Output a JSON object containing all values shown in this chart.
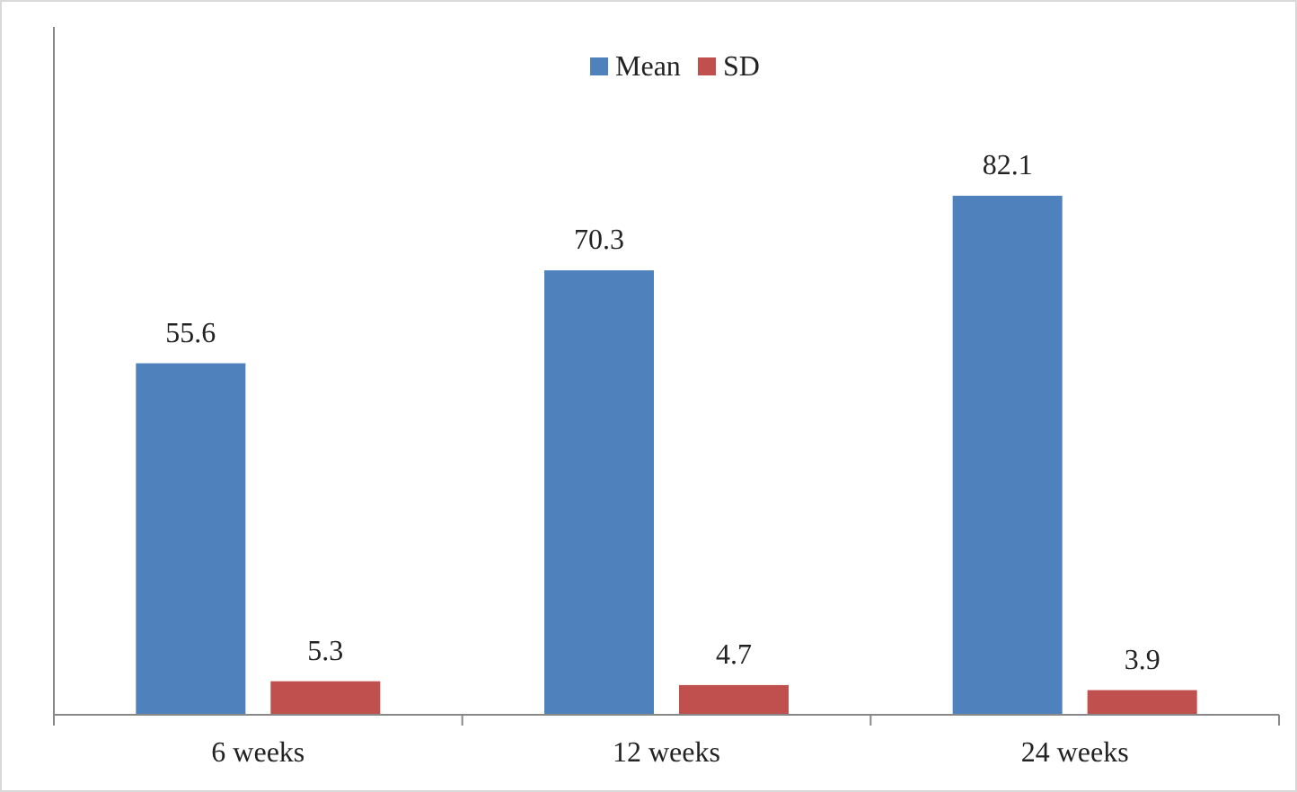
{
  "chart_data": {
    "type": "bar",
    "categories": [
      "6 weeks",
      "12 weeks",
      "24 weeks"
    ],
    "series": [
      {
        "name": "Mean",
        "color": "#4f81bd",
        "values": [
          55.6,
          70.3,
          82.1
        ]
      },
      {
        "name": "SD",
        "color": "#c0504d",
        "values": [
          5.3,
          4.7,
          3.9
        ]
      }
    ],
    "data_labels": true,
    "legend": "top",
    "grid": false
  }
}
